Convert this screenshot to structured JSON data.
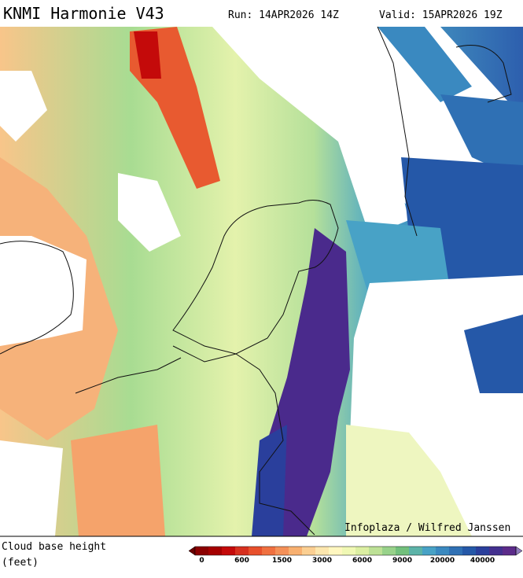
{
  "header": {
    "title": "KNMI Harmonie V43",
    "run": "Run: 14APR2026 14Z",
    "valid": "Valid: 15APR2026 19Z"
  },
  "map": {
    "credit": "Infoplaza / Wilfred Janssen"
  },
  "legend": {
    "label": [
      "Cloud base height",
      "(feet)"
    ],
    "ticks": [
      0,
      600,
      1500,
      3000,
      6000,
      9000,
      20000,
      40000
    ],
    "colors": [
      "#8b0000",
      "#a50000",
      "#c40a0a",
      "#d7301f",
      "#e8502c",
      "#f07040",
      "#f49058",
      "#f8b070",
      "#fbcf92",
      "#fde7ae",
      "#fff7c0",
      "#f0f8b4",
      "#dcefa2",
      "#bde196",
      "#98d28a",
      "#72c07c",
      "#5cb3a8",
      "#48a2c6",
      "#3a89c0",
      "#2f70b4",
      "#2558a8",
      "#2a3f9c",
      "#43308f",
      "#5c2b8a"
    ],
    "under_color": "#6a0000",
    "over_color": "#8f7bbd"
  }
}
